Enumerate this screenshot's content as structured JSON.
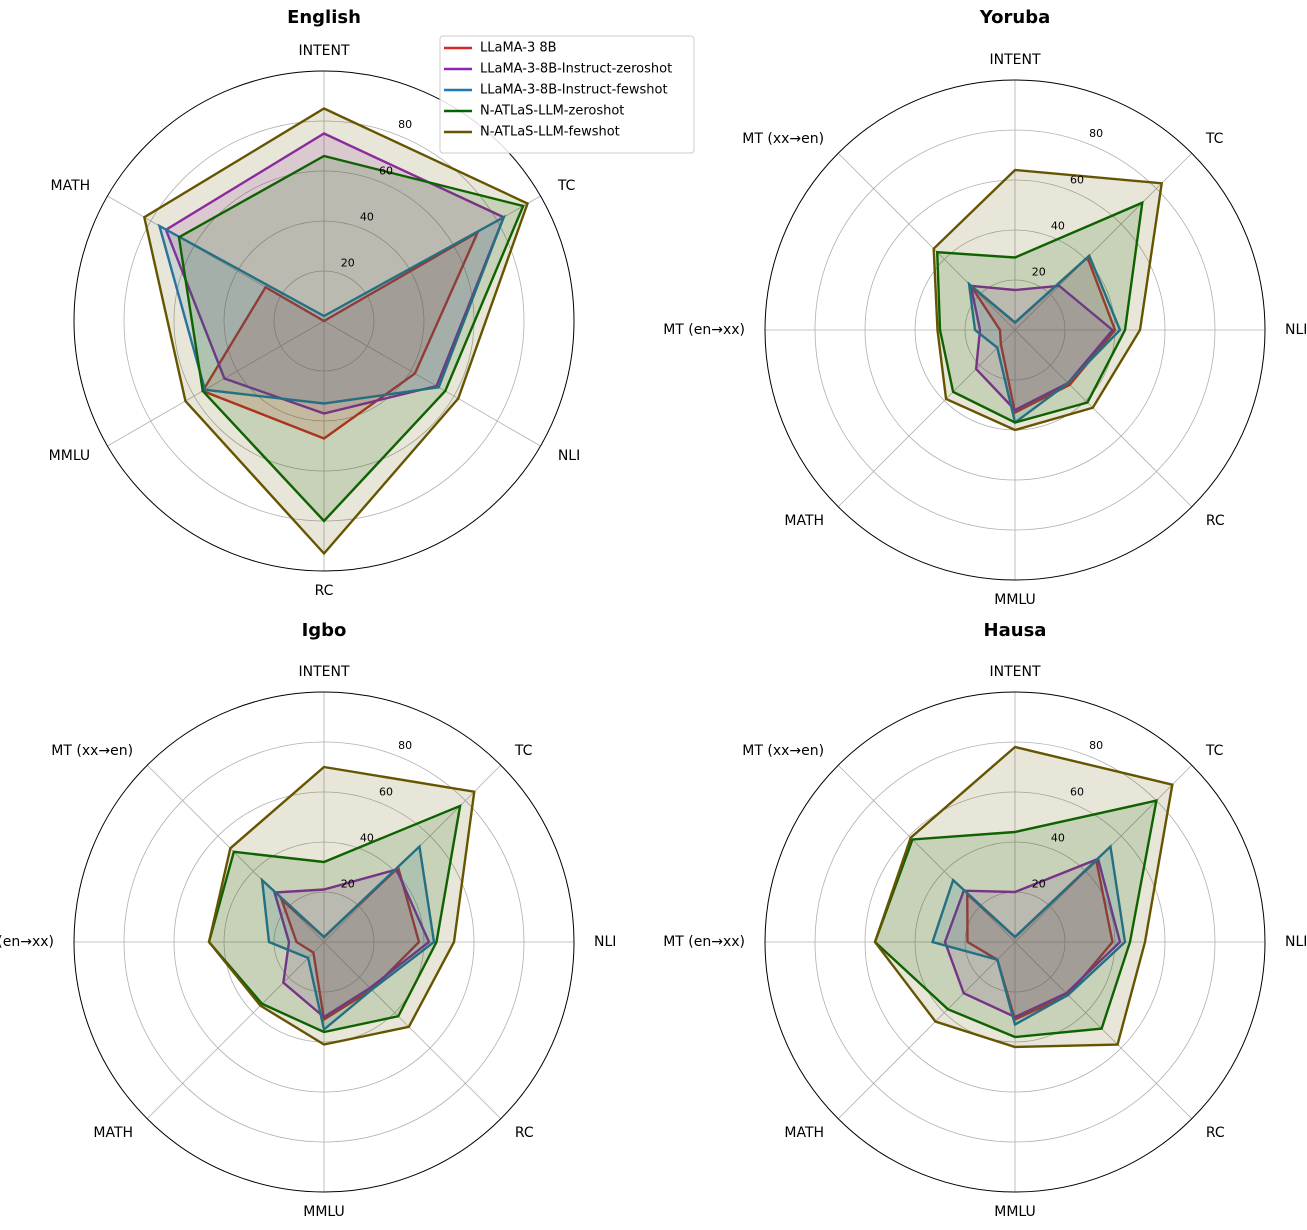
{
  "chart_data": [
    {
      "type": "radar",
      "title": "English",
      "legend": "upper right",
      "categories": [
        "INTENT",
        "TC",
        "NLI",
        "RC",
        "MMLU",
        "MATH"
      ],
      "ylim": [
        0,
        100
      ],
      "yticks": [
        20,
        40,
        60,
        80
      ],
      "grid": true,
      "series": [
        {
          "name": "LLaMA-3 8B",
          "color": "#d62728",
          "values": [
            0,
            71,
            42,
            47,
            56,
            27
          ]
        },
        {
          "name": "LLaMA-3-8B-Instruct-zeroshot",
          "color": "#9124b8",
          "values": [
            75,
            83,
            52,
            37,
            46,
            73
          ]
        },
        {
          "name": "LLaMA-3-8B-Instruct-fewshot",
          "color": "#1f77b4",
          "values": [
            2,
            83,
            53,
            33,
            55,
            76
          ]
        },
        {
          "name": "N-ATLaS-LLM-zeroshot",
          "color": "#006400",
          "values": [
            66,
            92,
            56,
            80,
            56,
            67
          ]
        },
        {
          "name": "N-ATLaS-LLM-fewshot",
          "color": "#665500",
          "values": [
            85,
            94,
            62,
            93,
            64,
            83
          ]
        }
      ]
    },
    {
      "type": "radar",
      "title": "Yoruba",
      "categories": [
        "INTENT",
        "TC",
        "NLI",
        "RC",
        "MMLU",
        "MATH",
        "MT (en→xx)",
        "MT (xx→en)"
      ],
      "ylim": [
        0,
        100
      ],
      "yticks": [
        20,
        40,
        60,
        80
      ],
      "grid": true,
      "series": [
        {
          "color": "#d62728",
          "values": [
            3,
            41,
            40,
            31,
            33,
            8,
            6,
            25
          ]
        },
        {
          "color": "#9124b8",
          "values": [
            16,
            25,
            39,
            30,
            32,
            22,
            14,
            25
          ]
        },
        {
          "color": "#1f77b4",
          "values": [
            3,
            42,
            42,
            30,
            37,
            10,
            16,
            26
          ]
        },
        {
          "color": "#006400",
          "values": [
            29,
            72,
            44,
            41,
            37,
            35,
            30,
            44
          ]
        },
        {
          "color": "#665500",
          "values": [
            64,
            83,
            50,
            44,
            40,
            39,
            31,
            46
          ]
        }
      ]
    },
    {
      "type": "radar",
      "title": "Igbo",
      "categories": [
        "INTENT",
        "TC",
        "NLI",
        "RC",
        "MMLU",
        "MATH",
        "MT (en→xx)",
        "MT (xx→en)"
      ],
      "ylim": [
        0,
        100
      ],
      "yticks": [
        20,
        40,
        60,
        80
      ],
      "grid": true,
      "series": [
        {
          "color": "#d62728",
          "values": [
            2,
            42,
            38,
            27,
            31,
            6,
            11,
            24
          ]
        },
        {
          "color": "#9124b8",
          "values": [
            21,
            41,
            42,
            26,
            30,
            23,
            14,
            28
          ]
        },
        {
          "color": "#1f77b4",
          "values": [
            2,
            54,
            44,
            27,
            35,
            9,
            22,
            35
          ]
        },
        {
          "color": "#006400",
          "values": [
            32,
            77,
            45,
            42,
            36,
            35,
            46,
            51
          ]
        },
        {
          "color": "#665500",
          "values": [
            70,
            85,
            52,
            48,
            41,
            36,
            46,
            53
          ]
        }
      ]
    },
    {
      "type": "radar",
      "title": "Hausa",
      "categories": [
        "INTENT",
        "TC",
        "NLI",
        "RC",
        "MMLU",
        "MATH",
        "MT (en→xx)",
        "MT (xx→en)"
      ],
      "ylim": [
        0,
        100
      ],
      "yticks": [
        20,
        40,
        60,
        80
      ],
      "grid": true,
      "series": [
        {
          "color": "#d62728",
          "values": [
            2,
            46,
            39,
            30,
            31,
            10,
            19,
            27
          ]
        },
        {
          "color": "#9124b8",
          "values": [
            20,
            47,
            42,
            29,
            30,
            29,
            28,
            29
          ]
        },
        {
          "color": "#1f77b4",
          "values": [
            2,
            54,
            44,
            30,
            33,
            10,
            33,
            35
          ]
        },
        {
          "color": "#006400",
          "values": [
            44,
            80,
            46,
            49,
            38,
            38,
            56,
            58
          ]
        },
        {
          "color": "#665500",
          "values": [
            78,
            89,
            52,
            58,
            42,
            45,
            56,
            59
          ]
        }
      ]
    }
  ]
}
